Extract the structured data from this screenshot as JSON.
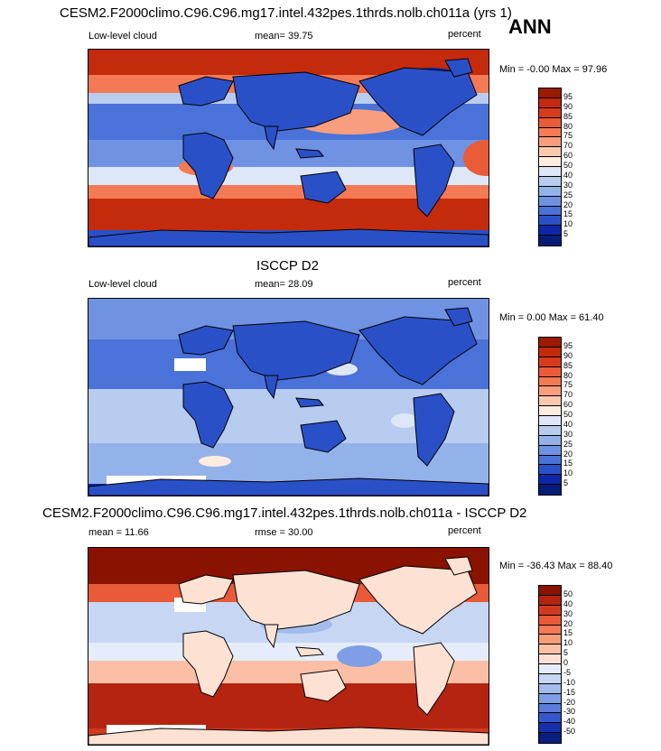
{
  "chart_data": [
    {
      "type": "heatmap",
      "title": "CESM2.F2000climo.C96.C96.mg17.intel.432pes.1thrds.nolb.ch011a (yrs 1)",
      "season": "ANN",
      "left_label": "Low-level cloud",
      "stat_label": "mean=  39.75",
      "units": "percent",
      "minmax": "Min =  -0.00 Max =  97.96",
      "levels": [
        "95",
        "90",
        "85",
        "80",
        "75",
        "70",
        "60",
        "50",
        "40",
        "30",
        "25",
        "20",
        "15",
        "10",
        "5"
      ],
      "colors": [
        "#9c1a00",
        "#c42a0c",
        "#d83b1c",
        "#ea5b38",
        "#f47a55",
        "#f89e7e",
        "#fbc8ae",
        "#fdecdf",
        "#dde7f8",
        "#b8ccf0",
        "#94b2ea",
        "#6f92e2",
        "#4b72d8",
        "#2a50c8",
        "#0c28a8",
        "#071c78"
      ]
    },
    {
      "type": "heatmap",
      "title": "ISCCP D2",
      "left_label": "Low-level cloud",
      "stat_label": "mean=  28.09",
      "units": "percent",
      "minmax": "Min =   0.00 Max =  61.40",
      "levels": [
        "95",
        "90",
        "85",
        "80",
        "75",
        "70",
        "60",
        "50",
        "40",
        "30",
        "25",
        "20",
        "15",
        "10",
        "5"
      ],
      "colors": [
        "#9c1a00",
        "#c42a0c",
        "#d83b1c",
        "#ea5b38",
        "#f47a55",
        "#f89e7e",
        "#fbc8ae",
        "#fdecdf",
        "#dde7f8",
        "#b8ccf0",
        "#94b2ea",
        "#6f92e2",
        "#4b72d8",
        "#2a50c8",
        "#0c28a8",
        "#071c78"
      ]
    },
    {
      "type": "heatmap",
      "title": "CESM2.F2000climo.C96.C96.mg17.intel.432pes.1thrds.nolb.ch011a - ISCCP D2",
      "left_label": "mean =  11.66",
      "stat_label": "rmse =  30.00",
      "units": "percent",
      "minmax": "Min = -36.43 Max =  88.40",
      "levels": [
        "50",
        "40",
        "30",
        "20",
        "15",
        "10",
        "5",
        "0",
        "-5",
        "-10",
        "-15",
        "-20",
        "-30",
        "-40",
        "-50"
      ],
      "colors": [
        "#8a1200",
        "#b52410",
        "#d13a1e",
        "#e85a38",
        "#f37a55",
        "#f89c7b",
        "#fbbfa5",
        "#fde2d4",
        "#e6edfa",
        "#c6d6f3",
        "#a3bcec",
        "#7f9ee5",
        "#5a7ddb",
        "#3457cb",
        "#1431aa",
        "#0a1d80"
      ]
    }
  ]
}
